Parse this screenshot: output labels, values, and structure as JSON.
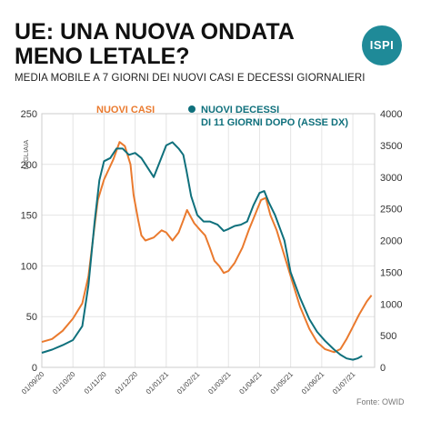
{
  "header": {
    "title": "UE: UNA NUOVA ONDATA MENO LETALE?",
    "subtitle": "MEDIA MOBILE A 7 GIORNI DEI NUOVI CASI E DECESSI GIORNALIERI"
  },
  "logo": {
    "text": "ISPI"
  },
  "source": "Fonte: OWID",
  "chart_data": {
    "type": "line",
    "x_tick_labels": [
      "01/09/20",
      "01/10/20",
      "01/11/20",
      "01/12/20",
      "01/01/21",
      "01/02/21",
      "01/03/21",
      "01/04/21",
      "01/05/21",
      "01/06/21",
      "01/07/21"
    ],
    "y_left": {
      "label": "MIGLIAIA",
      "range": [
        0,
        250
      ],
      "ticks": [
        "0",
        "50",
        "100",
        "150",
        "200",
        "250"
      ]
    },
    "y_right": {
      "range": [
        0,
        4000
      ],
      "ticks": [
        "0",
        "500",
        "1000",
        "1500",
        "2000",
        "2500",
        "3000",
        "3500",
        "4000"
      ]
    },
    "grid": true,
    "legend_position": "top",
    "series": [
      {
        "name": "NUOVI CASI",
        "axis": "left",
        "color": "#ea7a2e",
        "points": [
          [
            0,
            25
          ],
          [
            0.33,
            28
          ],
          [
            0.67,
            36
          ],
          [
            1,
            48
          ],
          [
            1.3,
            63
          ],
          [
            1.5,
            90
          ],
          [
            1.7,
            140
          ],
          [
            1.8,
            165
          ],
          [
            2,
            185
          ],
          [
            2.3,
            205
          ],
          [
            2.5,
            222
          ],
          [
            2.67,
            218
          ],
          [
            2.85,
            200
          ],
          [
            2.95,
            170
          ],
          [
            3.1,
            145
          ],
          [
            3.2,
            130
          ],
          [
            3.33,
            125
          ],
          [
            3.6,
            128
          ],
          [
            3.85,
            135
          ],
          [
            4,
            133
          ],
          [
            4.2,
            125
          ],
          [
            4.4,
            133
          ],
          [
            4.55,
            145
          ],
          [
            4.67,
            155
          ],
          [
            4.9,
            142
          ],
          [
            5.1,
            135
          ],
          [
            5.25,
            130
          ],
          [
            5.4,
            118
          ],
          [
            5.55,
            105
          ],
          [
            5.7,
            100
          ],
          [
            5.85,
            93
          ],
          [
            6,
            95
          ],
          [
            6.2,
            103
          ],
          [
            6.45,
            118
          ],
          [
            6.65,
            135
          ],
          [
            6.85,
            150
          ],
          [
            7.05,
            165
          ],
          [
            7.2,
            167
          ],
          [
            7.35,
            150
          ],
          [
            7.55,
            135
          ],
          [
            7.8,
            110
          ],
          [
            8,
            90
          ],
          [
            8.3,
            60
          ],
          [
            8.6,
            38
          ],
          [
            8.85,
            25
          ],
          [
            9.1,
            18
          ],
          [
            9.4,
            15
          ],
          [
            9.6,
            18
          ],
          [
            9.8,
            28
          ],
          [
            10,
            40
          ],
          [
            10.2,
            52
          ],
          [
            10.45,
            65
          ],
          [
            10.6,
            71
          ]
        ]
      },
      {
        "name": "NUOVI DECESSI DI 11 GIORNI DOPO (ASSE DX)",
        "axis": "right",
        "color": "#0f707c",
        "points": [
          [
            0,
            230
          ],
          [
            0.33,
            280
          ],
          [
            0.67,
            350
          ],
          [
            1,
            430
          ],
          [
            1.3,
            650
          ],
          [
            1.5,
            1300
          ],
          [
            1.7,
            2300
          ],
          [
            1.85,
            2950
          ],
          [
            2,
            3250
          ],
          [
            2.2,
            3300
          ],
          [
            2.4,
            3450
          ],
          [
            2.6,
            3450
          ],
          [
            2.8,
            3350
          ],
          [
            3,
            3380
          ],
          [
            3.2,
            3300
          ],
          [
            3.4,
            3150
          ],
          [
            3.6,
            3000
          ],
          [
            3.8,
            3250
          ],
          [
            4,
            3500
          ],
          [
            4.2,
            3550
          ],
          [
            4.4,
            3450
          ],
          [
            4.55,
            3350
          ],
          [
            4.65,
            3100
          ],
          [
            4.8,
            2700
          ],
          [
            5,
            2400
          ],
          [
            5.2,
            2300
          ],
          [
            5.4,
            2300
          ],
          [
            5.65,
            2250
          ],
          [
            5.85,
            2150
          ],
          [
            6,
            2180
          ],
          [
            6.2,
            2230
          ],
          [
            6.4,
            2250
          ],
          [
            6.6,
            2300
          ],
          [
            6.8,
            2550
          ],
          [
            7,
            2750
          ],
          [
            7.15,
            2780
          ],
          [
            7.3,
            2600
          ],
          [
            7.5,
            2400
          ],
          [
            7.8,
            2000
          ],
          [
            8,
            1500
          ],
          [
            8.3,
            1100
          ],
          [
            8.6,
            760
          ],
          [
            8.85,
            560
          ],
          [
            9.1,
            420
          ],
          [
            9.4,
            280
          ],
          [
            9.6,
            200
          ],
          [
            9.8,
            140
          ],
          [
            10,
            120
          ],
          [
            10.15,
            140
          ],
          [
            10.3,
            180
          ]
        ]
      }
    ]
  }
}
